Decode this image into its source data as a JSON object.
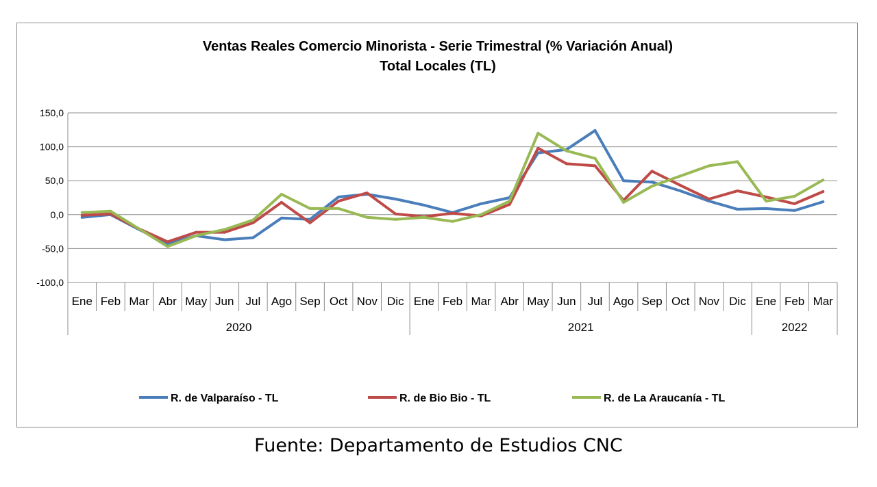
{
  "chart_data": {
    "type": "line",
    "title": "Ventas Reales Comercio Minorista - Serie Trimestral (% Variación Anual)",
    "subtitle": "Total Locales (TL)",
    "ylim": [
      -100,
      150
    ],
    "yticks": [
      "150,0",
      "100,0",
      "50,0",
      "0,0",
      "-50,0",
      "-100,0"
    ],
    "ytick_values": [
      150,
      100,
      50,
      0,
      -50,
      -100
    ],
    "grid": true,
    "legend_position": "bottom",
    "categories": [
      "Ene",
      "Feb",
      "Mar",
      "Abr",
      "May",
      "Jun",
      "Jul",
      "Ago",
      "Sep",
      "Oct",
      "Nov",
      "Dic",
      "Ene",
      "Feb",
      "Mar",
      "Abr",
      "May",
      "Jun",
      "Jul",
      "Ago",
      "Sep",
      "Oct",
      "Nov",
      "Dic",
      "Ene",
      "Feb",
      "Mar"
    ],
    "years": [
      {
        "label": "2020",
        "start": 0,
        "count": 12
      },
      {
        "label": "2021",
        "start": 12,
        "count": 12
      },
      {
        "label": "2022",
        "start": 24,
        "count": 3
      }
    ],
    "series": [
      {
        "name": "R. de Valparaíso - TL",
        "color": "#4a7ebb",
        "values": [
          -4,
          0,
          -22,
          -43,
          -31,
          -37,
          -34,
          -5,
          -7,
          26,
          30,
          23,
          14,
          3,
          16,
          25,
          91,
          96,
          124,
          50,
          48,
          35,
          20,
          8,
          9,
          6,
          19
        ]
      },
      {
        "name": "R. de Bio Bio - TL",
        "color": "#be4b48",
        "values": [
          -1,
          1,
          -21,
          -40,
          -26,
          -26,
          -12,
          18,
          -12,
          20,
          32,
          1,
          -3,
          2,
          -2,
          15,
          98,
          75,
          72,
          21,
          64,
          43,
          23,
          35,
          26,
          16,
          34
        ]
      },
      {
        "name": "R. de La Araucanía - TL",
        "color": "#98b954",
        "values": [
          3,
          5,
          -21,
          -47,
          -31,
          -22,
          -8,
          30,
          9,
          9,
          -4,
          -7,
          -4,
          -10,
          0,
          20,
          120,
          94,
          83,
          18,
          42,
          57,
          72,
          78,
          20,
          27,
          51
        ]
      }
    ]
  },
  "source": "Fuente: Departamento de Estudios CNC"
}
